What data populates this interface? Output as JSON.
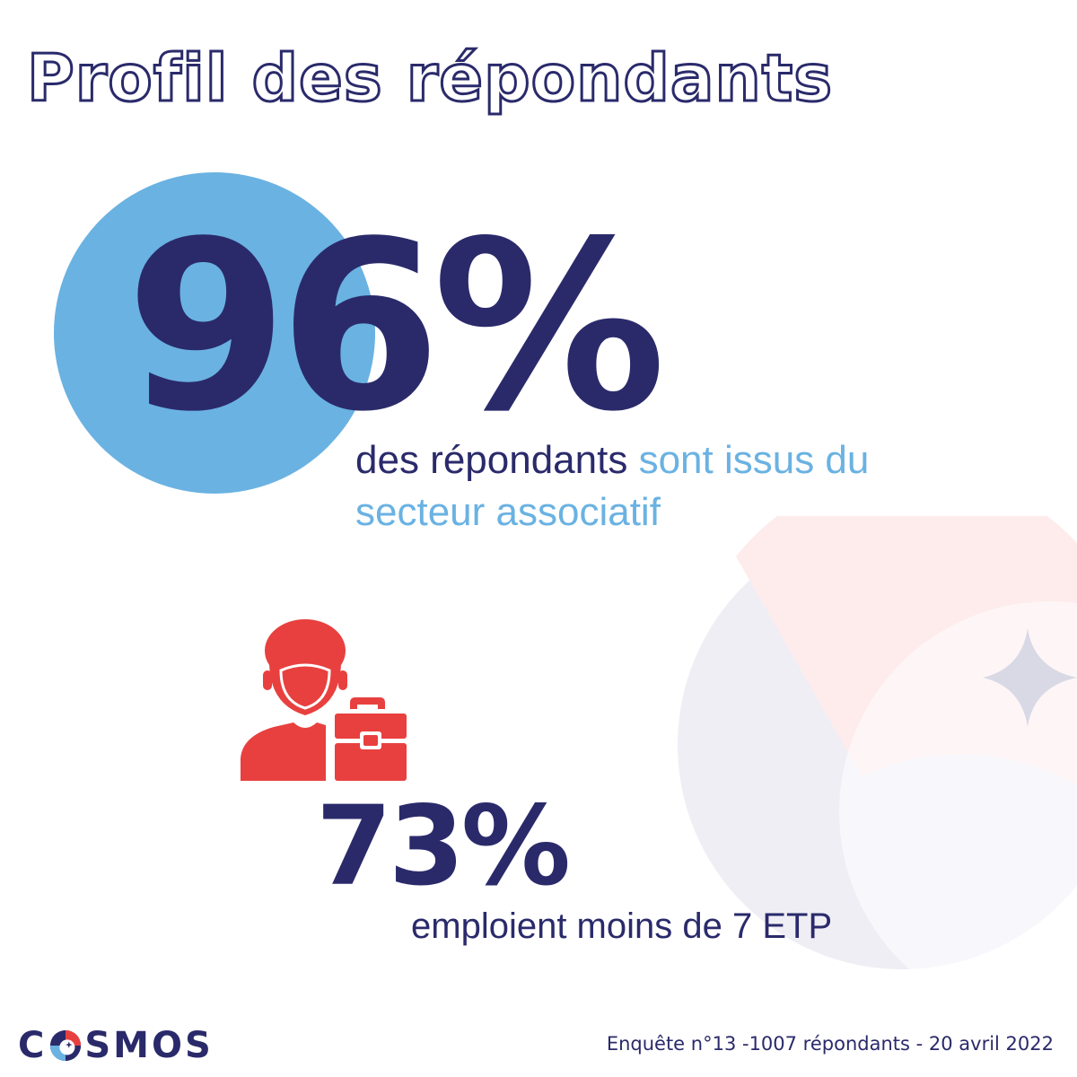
{
  "title": "Profil des répondants",
  "stat_sector": {
    "value": "96%",
    "text_plain": "des répondants ",
    "text_highlight": "sont issus du secteur associatif"
  },
  "stat_employees": {
    "value": "73%",
    "text": "emploient moins de 7 ETP",
    "icon": "employee-briefcase-icon"
  },
  "footer": {
    "logo_prefix": "C",
    "logo_suffix": "SMOS",
    "note": "Enquête n°13 -1007 répondants - 20 avril 2022"
  },
  "colors": {
    "navy": "#2a2a6b",
    "light_blue": "#6ab2e2",
    "red": "#e8403f"
  }
}
